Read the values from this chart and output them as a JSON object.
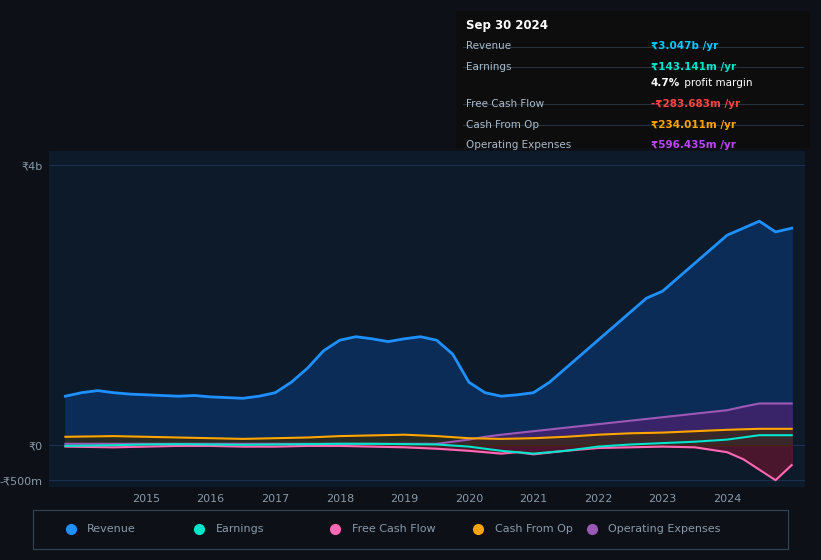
{
  "background_color": "#0d1117",
  "plot_bg_color": "#0d1a2a",
  "grid_color": "#1e3050",
  "text_color": "#8899aa",
  "title_color": "#ffffff",
  "xlim_start": 2013.5,
  "xlim_end": 2025.2,
  "ylim_min": -600,
  "ylim_max": 4200,
  "yticks": [
    -500,
    0,
    4000
  ],
  "ytick_labels": [
    "-₹500m",
    "₹0",
    "₹4b"
  ],
  "xtick_years": [
    2015,
    2016,
    2017,
    2018,
    2019,
    2020,
    2021,
    2022,
    2023,
    2024
  ],
  "revenue_color": "#1e90ff",
  "revenue_fill_color": "#0a3060",
  "earnings_color": "#00e5cc",
  "fcf_color": "#ff69b4",
  "cashop_color": "#ffa500",
  "opex_color": "#9b59b6",
  "revenue_x": [
    2013.75,
    2014.0,
    2014.25,
    2014.5,
    2014.75,
    2015.0,
    2015.25,
    2015.5,
    2015.75,
    2016.0,
    2016.25,
    2016.5,
    2016.75,
    2017.0,
    2017.25,
    2017.5,
    2017.75,
    2018.0,
    2018.25,
    2018.5,
    2018.75,
    2019.0,
    2019.25,
    2019.5,
    2019.75,
    2020.0,
    2020.25,
    2020.5,
    2020.75,
    2021.0,
    2021.25,
    2021.5,
    2021.75,
    2022.0,
    2022.25,
    2022.5,
    2022.75,
    2023.0,
    2023.25,
    2023.5,
    2023.75,
    2024.0,
    2024.25,
    2024.5,
    2024.75,
    2025.0
  ],
  "revenue_y": [
    700,
    750,
    780,
    750,
    730,
    720,
    710,
    700,
    710,
    690,
    680,
    670,
    700,
    750,
    900,
    1100,
    1350,
    1500,
    1550,
    1520,
    1480,
    1520,
    1550,
    1500,
    1300,
    900,
    750,
    700,
    720,
    750,
    900,
    1100,
    1300,
    1500,
    1700,
    1900,
    2100,
    2200,
    2400,
    2600,
    2800,
    3000,
    3100,
    3200,
    3047,
    3100
  ],
  "earnings_x": [
    2013.75,
    2014.5,
    2015.0,
    2015.5,
    2016.0,
    2016.5,
    2017.0,
    2017.5,
    2018.0,
    2018.5,
    2019.0,
    2019.5,
    2020.0,
    2020.25,
    2020.5,
    2020.75,
    2021.0,
    2021.5,
    2022.0,
    2022.5,
    2023.0,
    2023.5,
    2024.0,
    2024.5,
    2025.0
  ],
  "earnings_y": [
    -10,
    0,
    10,
    15,
    10,
    5,
    10,
    15,
    20,
    20,
    15,
    10,
    -20,
    -50,
    -80,
    -100,
    -120,
    -80,
    -20,
    10,
    30,
    50,
    80,
    143,
    143
  ],
  "fcf_x": [
    2013.75,
    2014.5,
    2015.0,
    2015.5,
    2016.0,
    2016.5,
    2017.0,
    2017.5,
    2018.0,
    2018.5,
    2019.0,
    2019.5,
    2020.0,
    2020.25,
    2020.5,
    2020.75,
    2021.0,
    2021.5,
    2022.0,
    2022.5,
    2023.0,
    2023.5,
    2024.0,
    2024.25,
    2024.5,
    2024.75,
    2025.0
  ],
  "fcf_y": [
    -20,
    -30,
    -20,
    -10,
    -10,
    -20,
    -20,
    -10,
    -10,
    -20,
    -30,
    -50,
    -80,
    -100,
    -120,
    -100,
    -130,
    -80,
    -40,
    -30,
    -20,
    -30,
    -100,
    -200,
    -350,
    -500,
    -284
  ],
  "cashop_x": [
    2013.75,
    2014.5,
    2015.0,
    2015.5,
    2016.0,
    2016.5,
    2017.0,
    2017.5,
    2018.0,
    2018.5,
    2019.0,
    2019.5,
    2020.0,
    2020.5,
    2021.0,
    2021.5,
    2022.0,
    2022.5,
    2023.0,
    2023.5,
    2024.0,
    2024.5,
    2025.0
  ],
  "cashop_y": [
    120,
    130,
    120,
    110,
    100,
    90,
    100,
    110,
    130,
    140,
    150,
    130,
    100,
    90,
    100,
    120,
    150,
    170,
    180,
    200,
    220,
    234,
    234
  ],
  "opex_x": [
    2013.75,
    2014.5,
    2015.0,
    2015.5,
    2016.0,
    2016.5,
    2017.0,
    2017.5,
    2018.0,
    2018.5,
    2019.0,
    2019.5,
    2020.0,
    2020.25,
    2020.5,
    2021.0,
    2021.5,
    2022.0,
    2022.5,
    2023.0,
    2023.5,
    2024.0,
    2024.25,
    2024.5,
    2025.0
  ],
  "opex_y": [
    20,
    20,
    20,
    20,
    20,
    20,
    20,
    20,
    20,
    20,
    20,
    20,
    80,
    120,
    150,
    200,
    250,
    300,
    350,
    400,
    450,
    500,
    550,
    596,
    596
  ],
  "info_box": {
    "title": "Sep 30 2024",
    "rows": [
      {
        "label": "Revenue",
        "value": "₹3.047b /yr",
        "value_color": "#00ccff"
      },
      {
        "label": "Earnings",
        "value": "₹143.141m /yr",
        "value_color": "#00e5cc"
      },
      {
        "label": "",
        "value": "4.7% profit margin",
        "value_color": "#ffffff"
      },
      {
        "label": "Free Cash Flow",
        "value": "-₹283.683m /yr",
        "value_color": "#ff4444"
      },
      {
        "label": "Cash From Op",
        "value": "₹234.011m /yr",
        "value_color": "#ffa500"
      },
      {
        "label": "Operating Expenses",
        "value": "₹596.435m /yr",
        "value_color": "#bb44ff"
      }
    ]
  },
  "legend_items": [
    {
      "label": "Revenue",
      "color": "#1e90ff"
    },
    {
      "label": "Earnings",
      "color": "#00e5cc"
    },
    {
      "label": "Free Cash Flow",
      "color": "#ff69b4"
    },
    {
      "label": "Cash From Op",
      "color": "#ffa500"
    },
    {
      "label": "Operating Expenses",
      "color": "#9b59b6"
    }
  ]
}
